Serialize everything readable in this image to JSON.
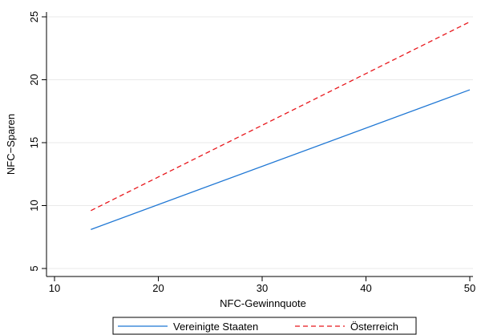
{
  "chart_data": {
    "type": "line",
    "xlabel": "NFC-Gewinnquote",
    "ylabel": "NFC−Sparen",
    "xlim": [
      10,
      50
    ],
    "ylim": [
      5,
      25
    ],
    "x_ticks": [
      10,
      20,
      30,
      40,
      50
    ],
    "y_ticks": [
      5,
      10,
      15,
      20,
      25
    ],
    "grid": true,
    "legend_position": "bottom",
    "series": [
      {
        "name": "Vereinigte Staaten",
        "color": "#1f77d4",
        "dash": "solid",
        "x": [
          13.5,
          50
        ],
        "y": [
          8.1,
          19.2
        ]
      },
      {
        "name": "Österreich",
        "color": "#e8171c",
        "dash": "dashed",
        "x": [
          13.5,
          50
        ],
        "y": [
          9.6,
          24.6
        ]
      }
    ]
  }
}
